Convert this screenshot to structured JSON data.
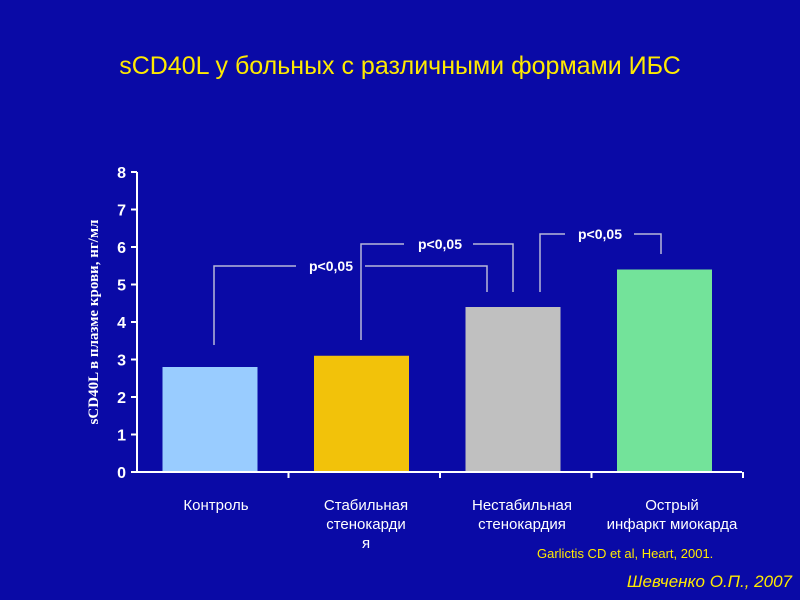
{
  "page": {
    "title": "sCD40L у больных с различными формами ИБС",
    "citation": "Garlictis CD et al, Heart, 2001.",
    "author": "Шевченко О.П., 2007"
  },
  "colors": {
    "background": "#0a0aa6",
    "title": "#ffea00",
    "axis": "#ffffff",
    "bracket": "#b8b8d8"
  },
  "chart_data": {
    "type": "bar",
    "title": "sCD40L у больных с различными формами ИБС",
    "ylabel": "sCD40L в плазме крови, нг/мл",
    "xlabel": "",
    "ylim": [
      0,
      8
    ],
    "yticks": [
      "0",
      "1",
      "2",
      "3",
      "4",
      "5",
      "6",
      "7",
      "8"
    ],
    "grid": false,
    "categories": [
      [
        "Контроль"
      ],
      [
        "Стабильная",
        "стенокарди",
        "я"
      ],
      [
        "Нестабильная",
        "стенокардия"
      ],
      [
        "Острый",
        "инфаркт миокарда"
      ]
    ],
    "values": [
      2.8,
      3.1,
      4.4,
      5.4
    ],
    "bar_colors": [
      "#99ccff",
      "#f2c20a",
      "#c0c0c0",
      "#73e39a"
    ],
    "annotations": [
      {
        "text": "p<0,05",
        "from": 0,
        "to": 2
      },
      {
        "text": "p<0,05",
        "from": 1,
        "to": 2
      },
      {
        "text": "p<0,05",
        "from": 2,
        "to": 3
      }
    ]
  }
}
